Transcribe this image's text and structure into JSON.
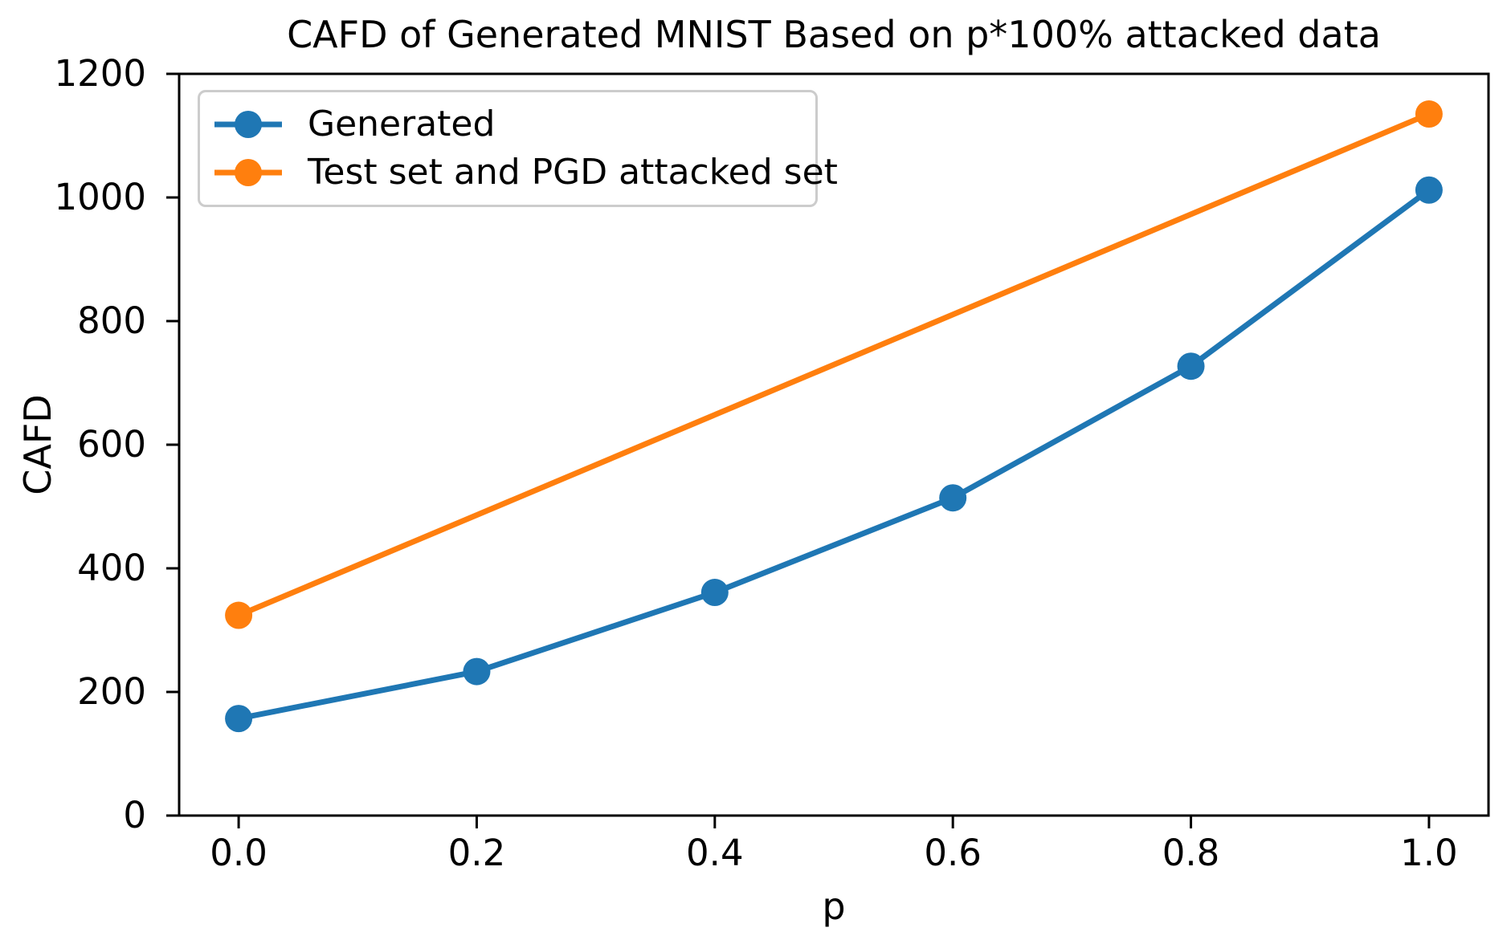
{
  "chart_data": {
    "type": "line",
    "title": "CAFD of Generated MNIST Based on p*100% attacked data",
    "xlabel": "p",
    "ylabel": "CAFD",
    "xlim": [
      -0.05,
      1.05
    ],
    "ylim": [
      0,
      1200
    ],
    "x_ticks": [
      0.0,
      0.2,
      0.4,
      0.6,
      0.8,
      1.0
    ],
    "x_tick_labels": [
      "0.0",
      "0.2",
      "0.4",
      "0.6",
      "0.8",
      "1.0"
    ],
    "y_ticks": [
      0,
      200,
      400,
      600,
      800,
      1000,
      1200
    ],
    "y_tick_labels": [
      "0",
      "200",
      "400",
      "600",
      "800",
      "1000",
      "1200"
    ],
    "grid": false,
    "legend_position": "upper left",
    "marker": "circle",
    "series": [
      {
        "name": "Generated",
        "color": "#1f77b4",
        "x": [
          0.0,
          0.2,
          0.4,
          0.6,
          0.8,
          1.0
        ],
        "values": [
          157,
          233,
          361,
          514,
          727,
          1012
        ]
      },
      {
        "name": "Test set and PGD attacked set",
        "color": "#ff7f0e",
        "x": [
          0.0,
          1.0
        ],
        "values": [
          324,
          1135
        ]
      }
    ]
  },
  "colors": {
    "axis": "#000000",
    "legend_border": "#cccccc",
    "background": "#ffffff"
  }
}
